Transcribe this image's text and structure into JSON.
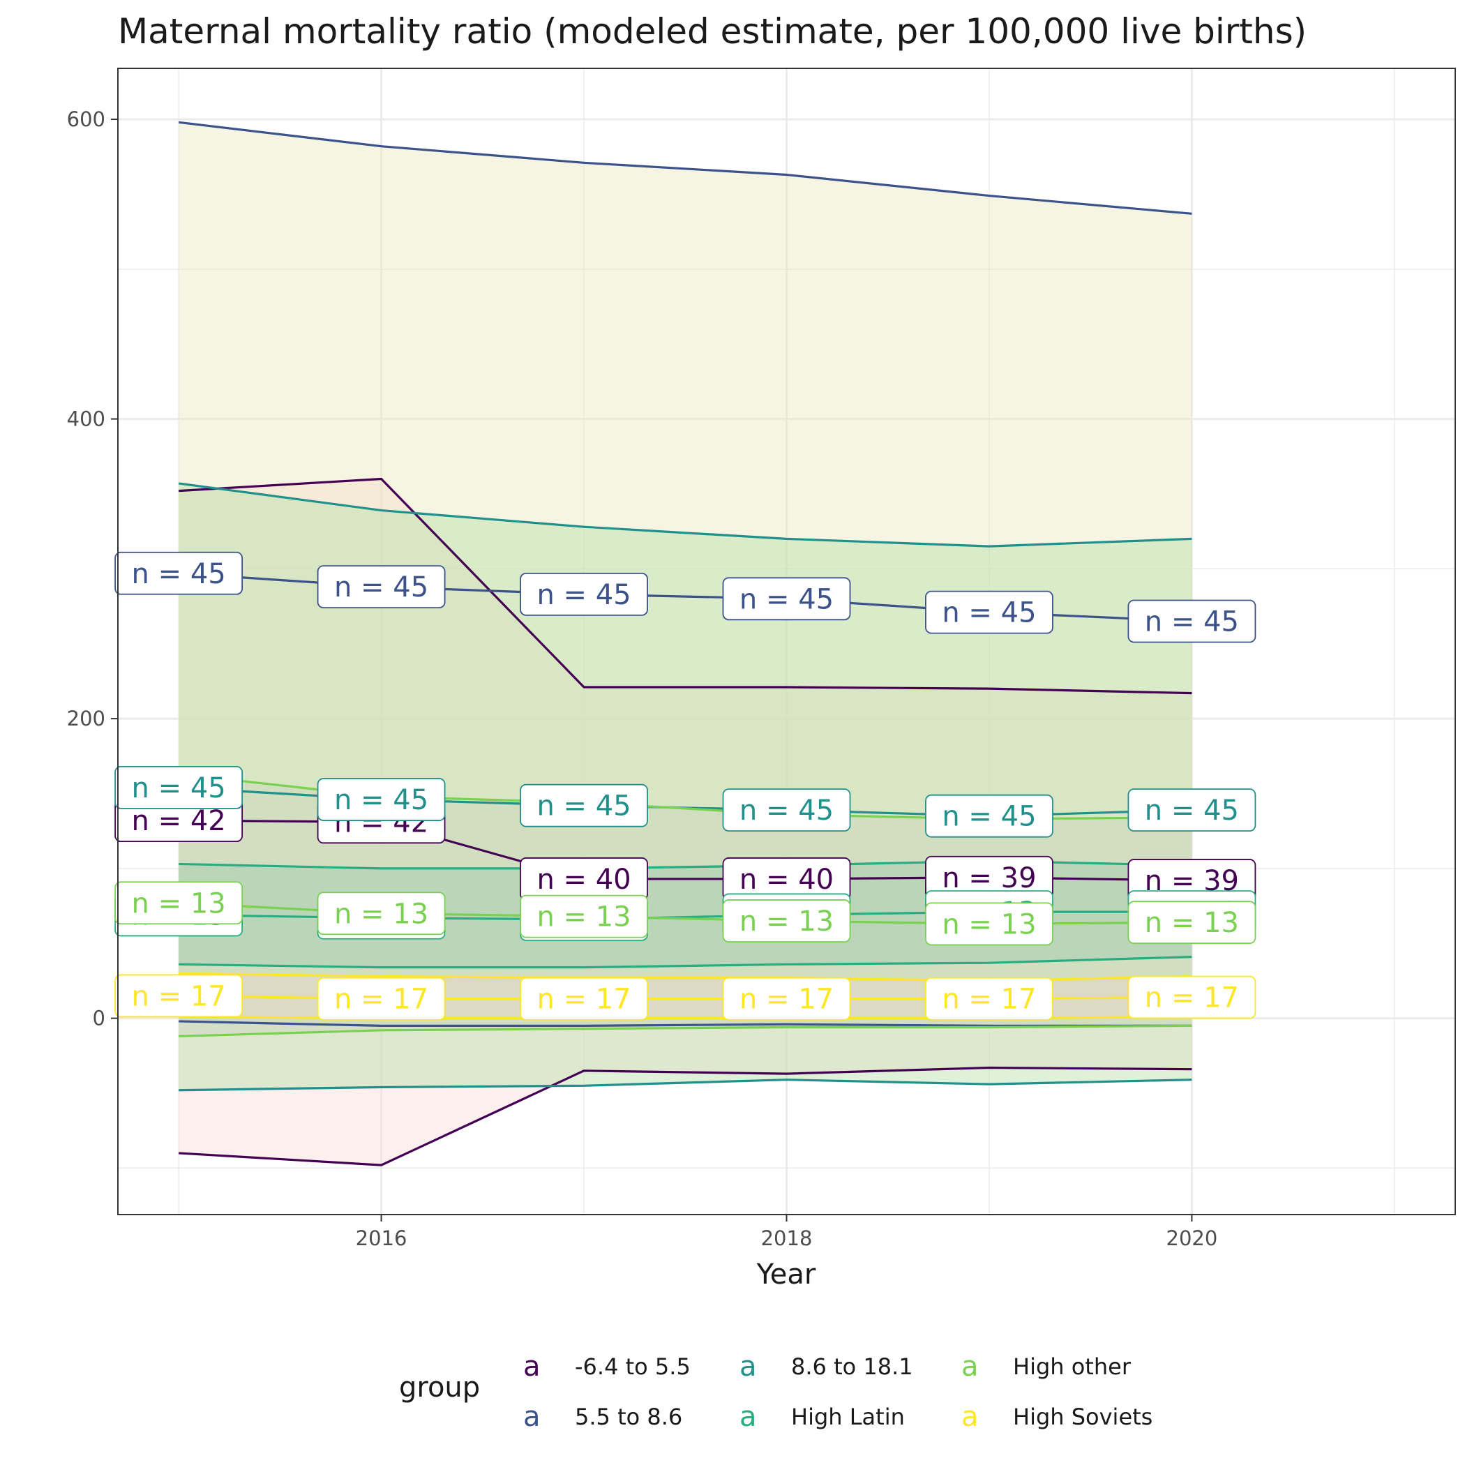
{
  "chart_data": {
    "type": "line",
    "title": "Maternal mortality ratio (modeled estimate, per 100,000 live births)",
    "xlabel": "Year",
    "ylabel": "",
    "x": [
      2015,
      2016,
      2017,
      2018,
      2019,
      2020
    ],
    "xlim": [
      2014.7,
      2021.3
    ],
    "ylim": [
      -131,
      634
    ],
    "x_ticks": [
      2016,
      2018,
      2020
    ],
    "y_ticks": [
      0,
      200,
      400,
      600
    ],
    "grid": true,
    "legend": {
      "title": "group",
      "position": "bottom",
      "key_glyph": "a"
    },
    "series": [
      {
        "name": "-6.4 to 5.5",
        "color": "#440154",
        "mean": [
          132,
          131,
          93,
          93,
          94,
          92
        ],
        "upper": [
          352,
          360,
          221,
          221,
          220,
          217
        ],
        "lower": [
          -90,
          -98,
          -35,
          -37,
          -33,
          -34
        ],
        "labels": [
          "n = 42",
          "n = 42",
          "n = 40",
          "n = 40",
          "n = 39",
          "n = 39"
        ]
      },
      {
        "name": "5.5 to 8.6",
        "color": "#3B528B",
        "mean": [
          297,
          288,
          283,
          280,
          271,
          265
        ],
        "upper": [
          598,
          582,
          571,
          563,
          549,
          537
        ],
        "lower": [
          -2,
          -5,
          -5,
          -4,
          -5,
          -5
        ],
        "labels": [
          "n = 45",
          "n = 45",
          "n = 45",
          "n = 45",
          "n = 45",
          "n = 45"
        ]
      },
      {
        "name": "8.6 to 18.1",
        "color": "#21908C",
        "mean": [
          154,
          146,
          142,
          139,
          135,
          139
        ],
        "upper": [
          357,
          339,
          328,
          320,
          315,
          320
        ],
        "lower": [
          -48,
          -46,
          -45,
          -41,
          -44,
          -41
        ],
        "labels": [
          "n = 45",
          "n = 45",
          "n = 45",
          "n = 45",
          "n = 45",
          "n = 45"
        ]
      },
      {
        "name": "High Latin",
        "color": "#27AD81",
        "mean": [
          69,
          67,
          66,
          69,
          71,
          71
        ],
        "upper": [
          103,
          100,
          100,
          102,
          105,
          102
        ],
        "lower": [
          36,
          34,
          34,
          36,
          37,
          41
        ],
        "labels": [
          "n = 13",
          "n = 13",
          "n = 13",
          "n = 13",
          "n = 13",
          "n = 13"
        ]
      },
      {
        "name": "High other",
        "color": "#7AD151",
        "mean": [
          77,
          70,
          68,
          65,
          63,
          64
        ],
        "upper": [
          163,
          148,
          144,
          136,
          133,
          134
        ],
        "lower": [
          -12,
          -8,
          -7,
          -6,
          -6,
          -5
        ],
        "labels": [
          "n = 13",
          "n = 13",
          "n = 13",
          "n = 13",
          "n = 13",
          "n = 13"
        ]
      },
      {
        "name": "High Soviets",
        "color": "#FDE725",
        "mean": [
          15,
          13,
          13,
          13,
          13,
          14
        ],
        "upper": [
          30,
          28,
          27,
          27,
          25,
          28
        ],
        "lower": [
          1,
          0,
          0,
          0,
          0,
          1
        ],
        "labels": [
          "n = 17",
          "n = 17",
          "n = 17",
          "n = 17",
          "n = 17",
          "n = 17"
        ]
      }
    ]
  }
}
